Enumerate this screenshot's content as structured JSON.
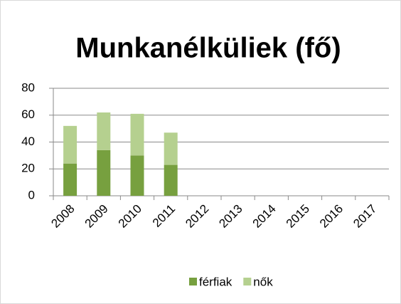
{
  "chart_data": {
    "type": "stacked_bar",
    "title": "Munkanélküliek (fő)",
    "categories": [
      "2008",
      "2009",
      "2010",
      "2011",
      "2012",
      "2013",
      "2014",
      "2015",
      "2016",
      "2017"
    ],
    "series": [
      {
        "name": "férfiak",
        "color": "#77a03f",
        "values": [
          24,
          34,
          30,
          23,
          null,
          null,
          null,
          null,
          null,
          null
        ]
      },
      {
        "name": "nők",
        "color": "#b5d08f",
        "values": [
          28,
          28,
          31,
          24,
          null,
          null,
          null,
          null,
          null,
          null
        ]
      }
    ],
    "ylim": [
      0,
      80
    ],
    "yticks": [
      0,
      20,
      40,
      60,
      80
    ],
    "grid": true,
    "legend": "bottom"
  }
}
